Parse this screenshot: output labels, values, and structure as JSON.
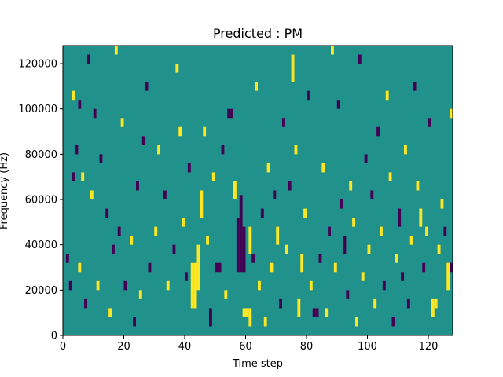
{
  "chart_data": {
    "type": "heatmap",
    "title": "Predicted : PM",
    "xlabel": "Time step",
    "ylabel": "Frequency (Hz)",
    "xlim": [
      0,
      128
    ],
    "ylim": [
      0,
      128000
    ],
    "x_ticks": [
      0,
      20,
      40,
      60,
      80,
      100,
      120
    ],
    "y_ticks": [
      0,
      20000,
      40000,
      60000,
      80000,
      100000,
      120000
    ],
    "grid": false,
    "legend": "none",
    "n_time_steps": 128,
    "n_freq_bins": 128,
    "colors": {
      "background": "#21918c",
      "low": "#440154",
      "high": "#fde725"
    },
    "cell_values": {
      "background": 0,
      "low": -1,
      "high": 1
    },
    "cells": [
      {
        "t": 42,
        "y0": 12000,
        "y1": 32000,
        "v": 1
      },
      {
        "t": 43,
        "y0": 12000,
        "y1": 32000,
        "v": 1
      },
      {
        "t": 44,
        "y0": 20000,
        "y1": 40000,
        "v": 1
      },
      {
        "t": 57,
        "y0": 28000,
        "y1": 52000,
        "v": -1
      },
      {
        "t": 58,
        "y0": 28000,
        "y1": 62000,
        "v": -1
      },
      {
        "t": 59,
        "y0": 28000,
        "y1": 48000,
        "v": -1
      },
      {
        "t": 61,
        "y0": 36000,
        "y1": 48000,
        "v": 1
      },
      {
        "t": 59,
        "y0": 8000,
        "y1": 12000,
        "v": 1
      },
      {
        "t": 60,
        "y0": 8000,
        "y1": 12000,
        "v": 1
      },
      {
        "t": 61,
        "y0": 4000,
        "y1": 12000,
        "v": 1
      },
      {
        "t": 45,
        "y0": 52000,
        "y1": 64000,
        "v": 1
      },
      {
        "t": 56,
        "y0": 60000,
        "y1": 68000,
        "v": 1
      },
      {
        "t": 48,
        "y0": 4000,
        "y1": 12000,
        "v": -1
      },
      {
        "t": 50,
        "y0": 28000,
        "y1": 32000,
        "v": -1
      },
      {
        "t": 51,
        "y0": 28000,
        "y1": 32000,
        "v": -1
      },
      {
        "t": 84,
        "y0": 32000,
        "y1": 36000,
        "v": -1
      },
      {
        "t": 82,
        "y0": 8000,
        "y1": 12000,
        "v": -1
      },
      {
        "t": 83,
        "y0": 8000,
        "y1": 12000,
        "v": -1
      },
      {
        "t": 91,
        "y0": 56000,
        "y1": 60000,
        "v": -1
      },
      {
        "t": 127,
        "y0": 28000,
        "y1": 32000,
        "v": -1
      },
      {
        "t": 5,
        "y0": 100000,
        "y1": 104000,
        "v": -1
      },
      {
        "t": 54,
        "y0": 96000,
        "y1": 100000,
        "v": -1
      },
      {
        "t": 55,
        "y0": 96000,
        "y1": 100000,
        "v": -1
      },
      {
        "t": 3,
        "y0": 104000,
        "y1": 108000,
        "v": 1
      },
      {
        "t": 127,
        "y0": 96000,
        "y1": 100000,
        "v": 1
      },
      {
        "t": 121,
        "y0": 8000,
        "y1": 16000,
        "v": 1
      },
      {
        "t": 122,
        "y0": 12000,
        "y1": 16000,
        "v": 1
      },
      {
        "t": 126,
        "y0": 20000,
        "y1": 32000,
        "v": 1
      },
      {
        "t": 75,
        "y0": 112000,
        "y1": 124000,
        "v": 1
      },
      {
        "t": 70,
        "y0": 40000,
        "y1": 48000,
        "v": 1
      },
      {
        "t": 78,
        "y0": 28000,
        "y1": 36000,
        "v": 1
      },
      {
        "t": 77,
        "y0": 8000,
        "y1": 16000,
        "v": 1
      },
      {
        "t": 92,
        "y0": 36000,
        "y1": 44000,
        "v": -1
      },
      {
        "t": 95,
        "y0": 48000,
        "y1": 52000,
        "v": 1
      },
      {
        "t": 110,
        "y0": 48000,
        "y1": 56000,
        "v": -1
      },
      {
        "t": 117,
        "y0": 48000,
        "y1": 56000,
        "v": 1
      },
      {
        "t": 1,
        "y0": 32000,
        "y1": 36000,
        "v": -1
      },
      {
        "t": 2,
        "y0": 20000,
        "y1": 24000,
        "v": -1
      },
      {
        "t": 3,
        "y0": 68000,
        "y1": 72000,
        "v": -1
      },
      {
        "t": 4,
        "y0": 80000,
        "y1": 84000,
        "v": -1
      },
      {
        "t": 5,
        "y0": 28000,
        "y1": 32000,
        "v": 1
      },
      {
        "t": 6,
        "y0": 68000,
        "y1": 72000,
        "v": 1
      },
      {
        "t": 7,
        "y0": 12000,
        "y1": 16000,
        "v": -1
      },
      {
        "t": 8,
        "y0": 120000,
        "y1": 124000,
        "v": -1
      },
      {
        "t": 9,
        "y0": 60000,
        "y1": 64000,
        "v": 1
      },
      {
        "t": 10,
        "y0": 96000,
        "y1": 100000,
        "v": -1
      },
      {
        "t": 11,
        "y0": 20000,
        "y1": 24000,
        "v": 1
      },
      {
        "t": 12,
        "y0": 76000,
        "y1": 80000,
        "v": -1
      },
      {
        "t": 14,
        "y0": 52000,
        "y1": 56000,
        "v": -1
      },
      {
        "t": 15,
        "y0": 8000,
        "y1": 12000,
        "v": 1
      },
      {
        "t": 16,
        "y0": 36000,
        "y1": 40000,
        "v": -1
      },
      {
        "t": 17,
        "y0": 124000,
        "y1": 128000,
        "v": 1
      },
      {
        "t": 18,
        "y0": 44000,
        "y1": 48000,
        "v": -1
      },
      {
        "t": 19,
        "y0": 92000,
        "y1": 96000,
        "v": 1
      },
      {
        "t": 20,
        "y0": 20000,
        "y1": 24000,
        "v": -1
      },
      {
        "t": 22,
        "y0": 40000,
        "y1": 44000,
        "v": 1
      },
      {
        "t": 23,
        "y0": 4000,
        "y1": 8000,
        "v": -1
      },
      {
        "t": 24,
        "y0": 64000,
        "y1": 68000,
        "v": -1
      },
      {
        "t": 25,
        "y0": 16000,
        "y1": 20000,
        "v": 1
      },
      {
        "t": 26,
        "y0": 84000,
        "y1": 88000,
        "v": -1
      },
      {
        "t": 27,
        "y0": 108000,
        "y1": 112000,
        "v": -1
      },
      {
        "t": 28,
        "y0": 28000,
        "y1": 32000,
        "v": -1
      },
      {
        "t": 30,
        "y0": 44000,
        "y1": 48000,
        "v": 1
      },
      {
        "t": 31,
        "y0": 80000,
        "y1": 84000,
        "v": 1
      },
      {
        "t": 33,
        "y0": 60000,
        "y1": 64000,
        "v": -1
      },
      {
        "t": 34,
        "y0": 20000,
        "y1": 24000,
        "v": 1
      },
      {
        "t": 36,
        "y0": 36000,
        "y1": 40000,
        "v": -1
      },
      {
        "t": 37,
        "y0": 116000,
        "y1": 120000,
        "v": 1
      },
      {
        "t": 38,
        "y0": 88000,
        "y1": 92000,
        "v": 1
      },
      {
        "t": 39,
        "y0": 48000,
        "y1": 52000,
        "v": 1
      },
      {
        "t": 40,
        "y0": 24000,
        "y1": 28000,
        "v": -1
      },
      {
        "t": 41,
        "y0": 72000,
        "y1": 76000,
        "v": -1
      },
      {
        "t": 46,
        "y0": 88000,
        "y1": 92000,
        "v": 1
      },
      {
        "t": 47,
        "y0": 40000,
        "y1": 44000,
        "v": 1
      },
      {
        "t": 49,
        "y0": 68000,
        "y1": 72000,
        "v": 1
      },
      {
        "t": 52,
        "y0": 80000,
        "y1": 84000,
        "v": -1
      },
      {
        "t": 53,
        "y0": 16000,
        "y1": 20000,
        "v": 1
      },
      {
        "t": 62,
        "y0": 32000,
        "y1": 36000,
        "v": -1
      },
      {
        "t": 63,
        "y0": 108000,
        "y1": 112000,
        "v": 1
      },
      {
        "t": 64,
        "y0": 20000,
        "y1": 24000,
        "v": 1
      },
      {
        "t": 65,
        "y0": 52000,
        "y1": 56000,
        "v": -1
      },
      {
        "t": 66,
        "y0": 4000,
        "y1": 8000,
        "v": 1
      },
      {
        "t": 67,
        "y0": 72000,
        "y1": 76000,
        "v": 1
      },
      {
        "t": 68,
        "y0": 28000,
        "y1": 32000,
        "v": 1
      },
      {
        "t": 69,
        "y0": 60000,
        "y1": 64000,
        "v": -1
      },
      {
        "t": 71,
        "y0": 12000,
        "y1": 16000,
        "v": -1
      },
      {
        "t": 72,
        "y0": 92000,
        "y1": 96000,
        "v": -1
      },
      {
        "t": 73,
        "y0": 36000,
        "y1": 40000,
        "v": 1
      },
      {
        "t": 74,
        "y0": 64000,
        "y1": 68000,
        "v": -1
      },
      {
        "t": 76,
        "y0": 80000,
        "y1": 84000,
        "v": 1
      },
      {
        "t": 79,
        "y0": 52000,
        "y1": 56000,
        "v": 1
      },
      {
        "t": 80,
        "y0": 104000,
        "y1": 108000,
        "v": -1
      },
      {
        "t": 81,
        "y0": 20000,
        "y1": 24000,
        "v": 1
      },
      {
        "t": 85,
        "y0": 72000,
        "y1": 76000,
        "v": 1
      },
      {
        "t": 86,
        "y0": 8000,
        "y1": 12000,
        "v": 1
      },
      {
        "t": 87,
        "y0": 44000,
        "y1": 48000,
        "v": -1
      },
      {
        "t": 88,
        "y0": 124000,
        "y1": 128000,
        "v": 1
      },
      {
        "t": 89,
        "y0": 28000,
        "y1": 32000,
        "v": 1
      },
      {
        "t": 90,
        "y0": 100000,
        "y1": 104000,
        "v": -1
      },
      {
        "t": 93,
        "y0": 16000,
        "y1": 20000,
        "v": -1
      },
      {
        "t": 94,
        "y0": 64000,
        "y1": 68000,
        "v": 1
      },
      {
        "t": 96,
        "y0": 4000,
        "y1": 8000,
        "v": 1
      },
      {
        "t": 97,
        "y0": 120000,
        "y1": 124000,
        "v": -1
      },
      {
        "t": 98,
        "y0": 24000,
        "y1": 28000,
        "v": 1
      },
      {
        "t": 99,
        "y0": 76000,
        "y1": 80000,
        "v": -1
      },
      {
        "t": 100,
        "y0": 36000,
        "y1": 40000,
        "v": 1
      },
      {
        "t": 101,
        "y0": 60000,
        "y1": 64000,
        "v": -1
      },
      {
        "t": 102,
        "y0": 12000,
        "y1": 16000,
        "v": 1
      },
      {
        "t": 103,
        "y0": 88000,
        "y1": 92000,
        "v": -1
      },
      {
        "t": 104,
        "y0": 44000,
        "y1": 48000,
        "v": 1
      },
      {
        "t": 105,
        "y0": 20000,
        "y1": 24000,
        "v": -1
      },
      {
        "t": 106,
        "y0": 104000,
        "y1": 108000,
        "v": 1
      },
      {
        "t": 107,
        "y0": 68000,
        "y1": 72000,
        "v": 1
      },
      {
        "t": 108,
        "y0": 4000,
        "y1": 8000,
        "v": -1
      },
      {
        "t": 109,
        "y0": 32000,
        "y1": 36000,
        "v": 1
      },
      {
        "t": 111,
        "y0": 24000,
        "y1": 28000,
        "v": -1
      },
      {
        "t": 112,
        "y0": 80000,
        "y1": 84000,
        "v": 1
      },
      {
        "t": 113,
        "y0": 12000,
        "y1": 16000,
        "v": -1
      },
      {
        "t": 114,
        "y0": 40000,
        "y1": 44000,
        "v": 1
      },
      {
        "t": 115,
        "y0": 108000,
        "y1": 112000,
        "v": -1
      },
      {
        "t": 116,
        "y0": 64000,
        "y1": 68000,
        "v": 1
      },
      {
        "t": 118,
        "y0": 28000,
        "y1": 32000,
        "v": -1
      },
      {
        "t": 119,
        "y0": 44000,
        "y1": 48000,
        "v": 1
      },
      {
        "t": 120,
        "y0": 92000,
        "y1": 96000,
        "v": -1
      },
      {
        "t": 123,
        "y0": 36000,
        "y1": 40000,
        "v": 1
      },
      {
        "t": 124,
        "y0": 56000,
        "y1": 60000,
        "v": 1
      },
      {
        "t": 125,
        "y0": 44000,
        "y1": 48000,
        "v": -1
      }
    ]
  }
}
